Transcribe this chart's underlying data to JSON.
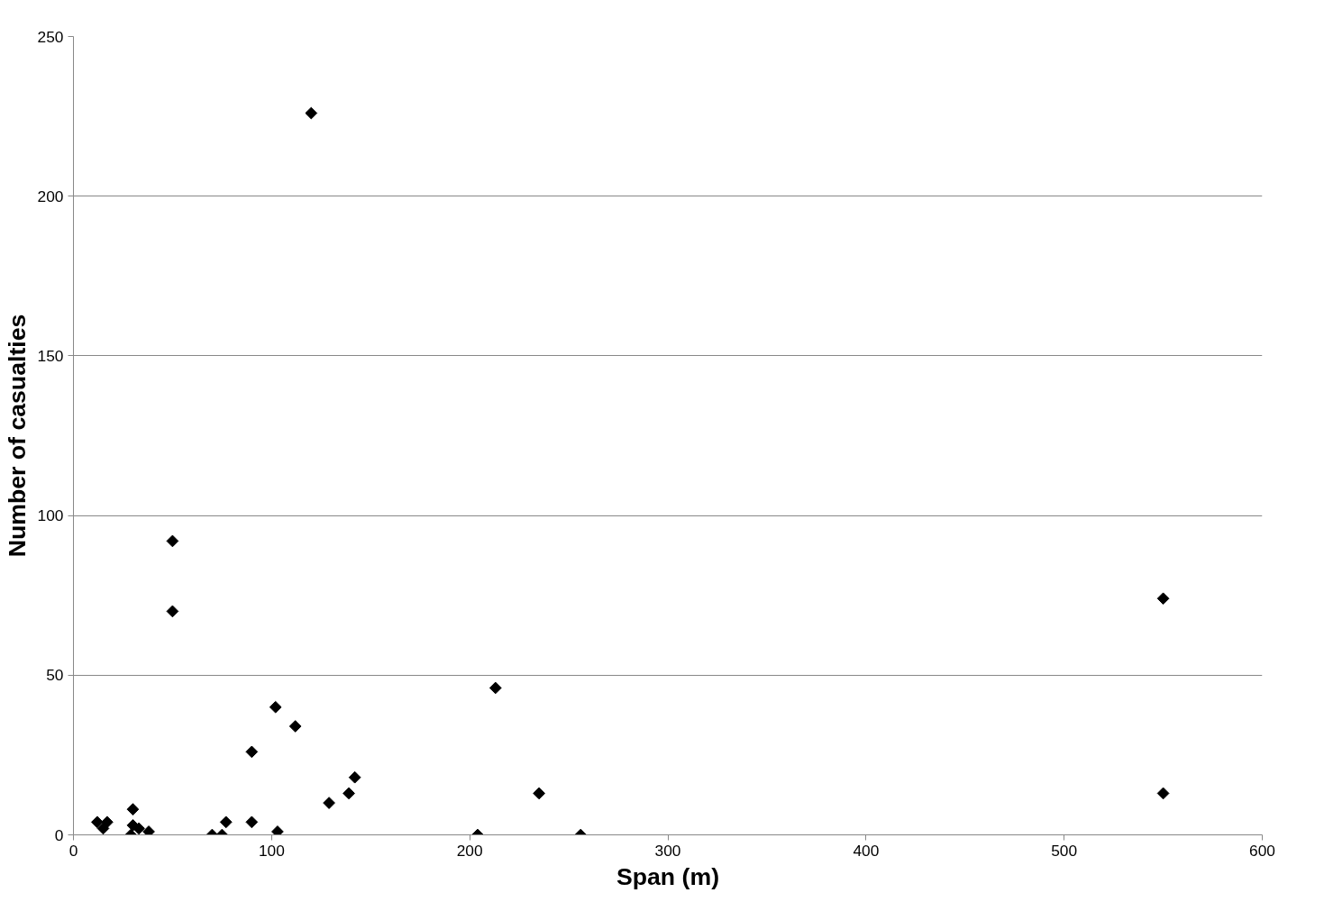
{
  "chart_data": {
    "type": "scatter",
    "xlabel": "Span (m)",
    "ylabel": "Number of casualties",
    "x": [
      12,
      15,
      17,
      29,
      30,
      30,
      33,
      38,
      50,
      50,
      70,
      75,
      77,
      90,
      90,
      102,
      103,
      112,
      120,
      129,
      139,
      142,
      204,
      213,
      235,
      256,
      550,
      550
    ],
    "values": [
      4,
      2,
      4,
      0,
      8,
      3,
      2,
      1,
      92,
      70,
      0,
      0,
      4,
      26,
      4,
      40,
      1,
      34,
      226,
      10,
      13,
      18,
      0,
      46,
      13,
      0,
      74,
      13
    ],
    "color": "#000000",
    "marker": "diamond",
    "xlim": [
      0,
      600
    ],
    "xticks": [
      0,
      100,
      200,
      300,
      400,
      500,
      600
    ],
    "ylim": [
      0,
      250
    ],
    "yticks": [
      0,
      50,
      100,
      150,
      200,
      250
    ],
    "grid": "y"
  }
}
